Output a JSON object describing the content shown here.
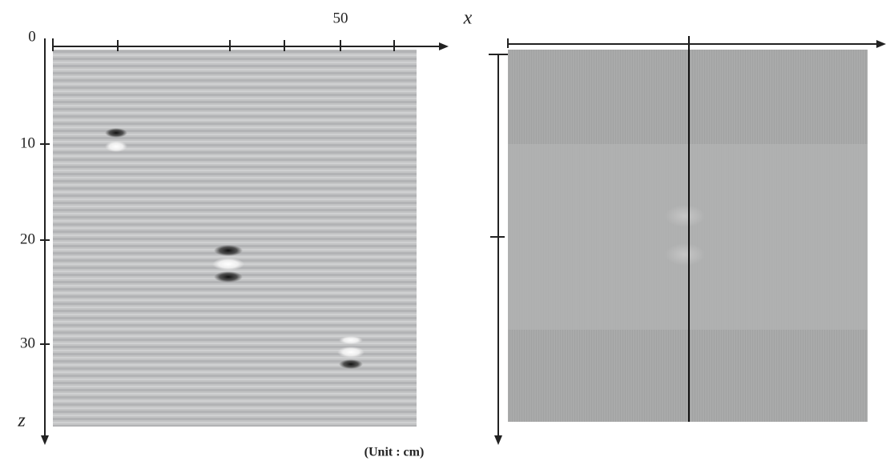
{
  "figure": {
    "left_panel": {
      "origin_label": "0",
      "x_tick_labels": [
        "50"
      ],
      "x_label": "x",
      "z_tick_labels": [
        "10",
        "20",
        "30"
      ],
      "z_label": "z"
    },
    "unit_note": "(Unit : cm)"
  }
}
